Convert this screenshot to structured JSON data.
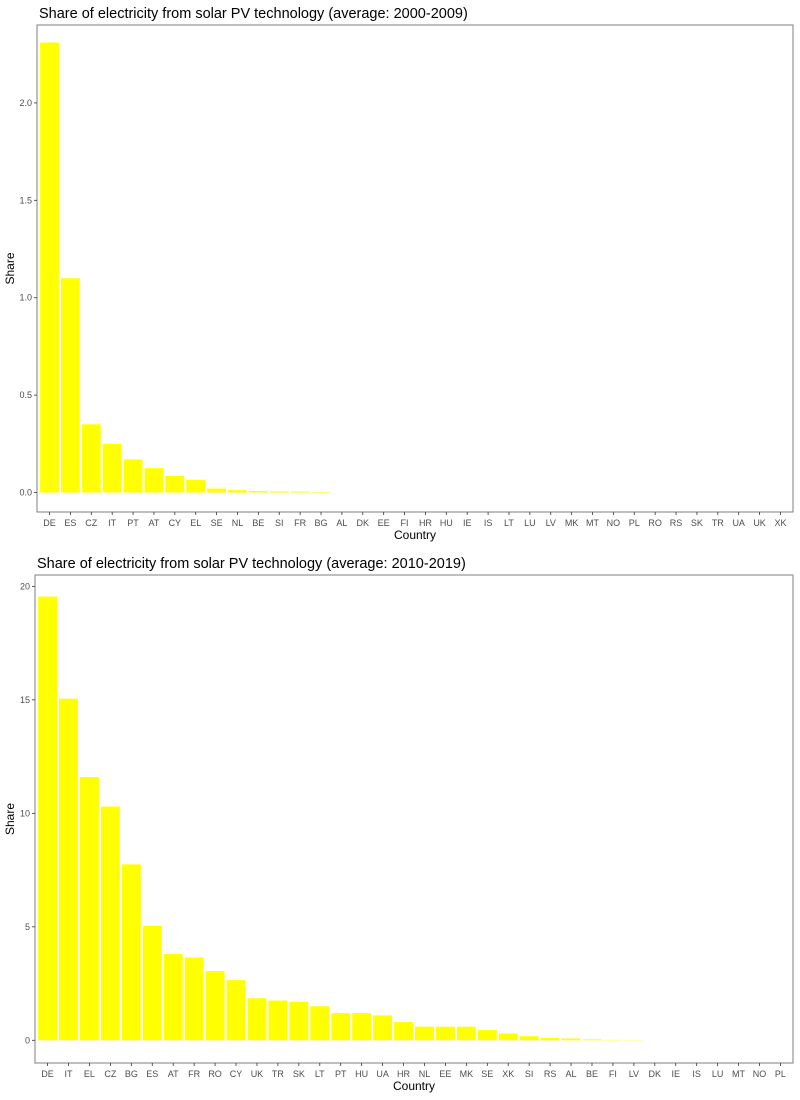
{
  "chart_data": [
    {
      "type": "bar",
      "title": "Share of electricity from solar PV technology (average: 2000-2009)",
      "xlabel": "Country",
      "ylabel": "Share",
      "ylim": [
        -0.1,
        2.4
      ],
      "yticks": [
        0.0,
        0.5,
        1.0,
        1.5,
        2.0
      ],
      "ytick_labels": [
        "0.0",
        "0.5",
        "1.0",
        "1.5",
        "2.0"
      ],
      "bar_color": "#ffff00",
      "grid": false,
      "categories": [
        "DE",
        "ES",
        "CZ",
        "IT",
        "PT",
        "AT",
        "CY",
        "EL",
        "SE",
        "NL",
        "BE",
        "SI",
        "FR",
        "BG",
        "AL",
        "DK",
        "EE",
        "FI",
        "HR",
        "HU",
        "IE",
        "IS",
        "LT",
        "LU",
        "LV",
        "MK",
        "MT",
        "NO",
        "PL",
        "RO",
        "RS",
        "SK",
        "TR",
        "UA",
        "UK",
        "XK"
      ],
      "values": [
        2.31,
        1.1,
        0.35,
        0.25,
        0.17,
        0.125,
        0.085,
        0.065,
        0.02,
        0.012,
        0.008,
        0.006,
        0.005,
        0.003,
        0.0,
        0.0,
        0.0,
        0.0,
        0.0,
        0.0,
        0.0,
        0.0,
        0.0,
        0.0,
        0.0,
        0.0,
        0.0,
        0.0,
        0.0,
        0.0,
        0.0,
        0.0,
        0.0,
        0.0,
        0.0,
        0.0
      ]
    },
    {
      "type": "bar",
      "title": "Share of electricity from solar PV technology (average: 2010-2019)",
      "xlabel": "Country",
      "ylabel": "Share",
      "ylim": [
        -1.0,
        20.5
      ],
      "yticks": [
        0,
        5,
        10,
        15,
        20
      ],
      "ytick_labels": [
        "0",
        "5",
        "10",
        "15",
        "20"
      ],
      "bar_color": "#ffff00",
      "grid": false,
      "categories": [
        "DE",
        "IT",
        "EL",
        "CZ",
        "BG",
        "ES",
        "AT",
        "FR",
        "RO",
        "CY",
        "UK",
        "TR",
        "SK",
        "LT",
        "PT",
        "HU",
        "UA",
        "HR",
        "NL",
        "EE",
        "MK",
        "SE",
        "XK",
        "SI",
        "RS",
        "AL",
        "BE",
        "FI",
        "LV",
        "DK",
        "IE",
        "IS",
        "LU",
        "MT",
        "NO",
        "PL"
      ],
      "values": [
        19.55,
        15.05,
        11.6,
        10.3,
        7.75,
        5.05,
        3.8,
        3.65,
        3.05,
        2.65,
        1.85,
        1.75,
        1.7,
        1.5,
        1.2,
        1.2,
        1.1,
        0.8,
        0.6,
        0.6,
        0.6,
        0.45,
        0.3,
        0.18,
        0.1,
        0.08,
        0.04,
        0.02,
        0.01,
        0.0,
        0.0,
        0.0,
        0.0,
        0.0,
        0.0,
        0.0
      ]
    }
  ]
}
